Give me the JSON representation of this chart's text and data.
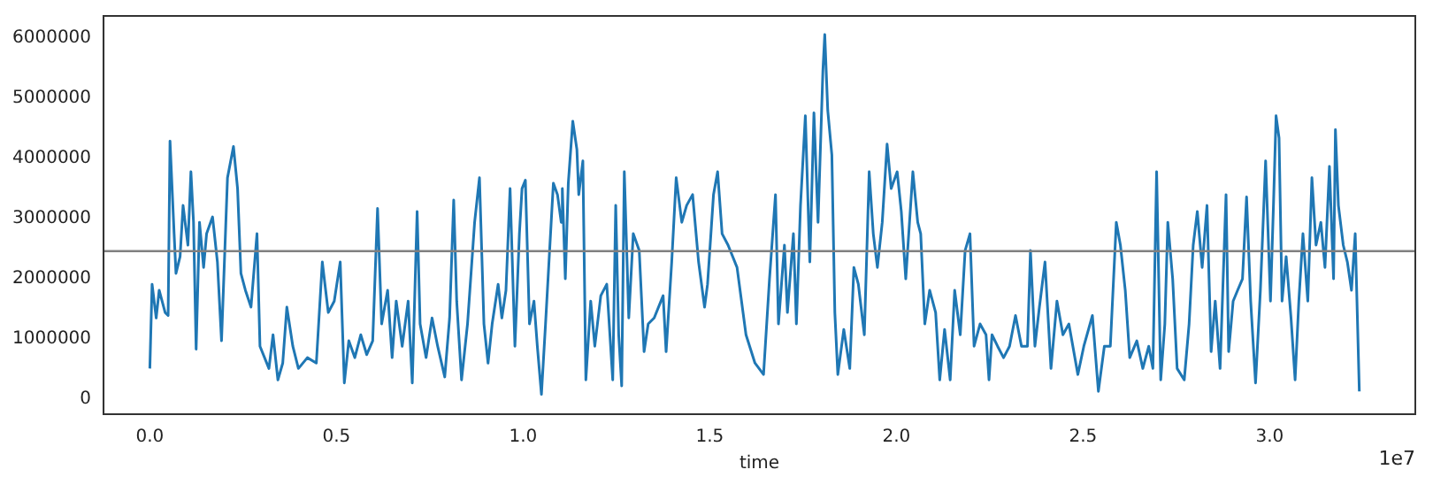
{
  "chart_data": {
    "type": "line",
    "xlabel": "time",
    "annotations": [
      "1e7"
    ],
    "grid": false,
    "legend": false,
    "marker": "none",
    "line_style": "solid",
    "xlim": [
      -0.124,
      3.39
    ],
    "ylim": [
      -260000,
      6360000
    ],
    "xticks": [
      {
        "value": 0,
        "label": "0.0"
      },
      0.5,
      {
        "value": 1,
        "label": "1.0"
      },
      1.5,
      {
        "value": 2,
        "label": "2.0"
      },
      2.5,
      {
        "value": 3,
        "label": "3.0"
      }
    ],
    "yticks": [
      0,
      1000000,
      2000000,
      3000000,
      4000000,
      5000000,
      6000000
    ],
    "ref_lines": [
      {
        "axis": "y",
        "value": 2450000,
        "color": "#808080"
      }
    ],
    "series": [
      {
        "color": "#1f77b4",
        "x": [
          0,
          0.006,
          0.017,
          0.025,
          0.041,
          0.049,
          0.054,
          0.065,
          0.07,
          0.081,
          0.089,
          0.102,
          0.11,
          0.117,
          0.124,
          0.133,
          0.144,
          0.152,
          0.168,
          0.181,
          0.192,
          0.208,
          0.224,
          0.235,
          0.244,
          0.256,
          0.271,
          0.287,
          0.295,
          0.319,
          0.33,
          0.343,
          0.356,
          0.367,
          0.383,
          0.398,
          0.422,
          0.446,
          0.462,
          0.478,
          0.494,
          0.51,
          0.521,
          0.533,
          0.549,
          0.565,
          0.581,
          0.597,
          0.61,
          0.621,
          0.637,
          0.649,
          0.66,
          0.676,
          0.692,
          0.703,
          0.716,
          0.724,
          0.74,
          0.756,
          0.771,
          0.79,
          0.803,
          0.814,
          0.822,
          0.835,
          0.851,
          0.87,
          0.883,
          0.895,
          0.906,
          0.917,
          0.933,
          0.943,
          0.954,
          0.965,
          0.978,
          0.99,
          0.997,
          1.006,
          1.017,
          1.029,
          1.038,
          1.049,
          1.06,
          1.07,
          1.081,
          1.092,
          1.102,
          1.105,
          1.113,
          1.121,
          1.133,
          1.144,
          1.149,
          1.16,
          1.168,
          1.181,
          1.192,
          1.208,
          1.224,
          1.24,
          1.248,
          1.256,
          1.264,
          1.271,
          1.283,
          1.295,
          1.311,
          1.324,
          1.335,
          1.351,
          1.375,
          1.383,
          1.398,
          1.41,
          1.425,
          1.438,
          1.454,
          1.47,
          1.486,
          1.494,
          1.51,
          1.521,
          1.533,
          1.549,
          1.573,
          1.597,
          1.621,
          1.644,
          1.66,
          1.676,
          1.684,
          1.7,
          1.708,
          1.724,
          1.732,
          1.743,
          1.756,
          1.768,
          1.779,
          1.79,
          1.803,
          1.808,
          1.816,
          1.827,
          1.835,
          1.843,
          1.859,
          1.875,
          1.886,
          1.898,
          1.914,
          1.927,
          1.938,
          1.949,
          1.962,
          1.975,
          1.986,
          2.002,
          2.013,
          2.025,
          2.044,
          2.057,
          2.065,
          2.076,
          2.089,
          2.105,
          2.116,
          2.129,
          2.144,
          2.156,
          2.171,
          2.184,
          2.197,
          2.208,
          2.224,
          2.24,
          2.248,
          2.256,
          2.271,
          2.287,
          2.303,
          2.319,
          2.335,
          2.351,
          2.359,
          2.371,
          2.383,
          2.398,
          2.414,
          2.43,
          2.446,
          2.462,
          2.486,
          2.502,
          2.525,
          2.541,
          2.557,
          2.573,
          2.589,
          2.6,
          2.613,
          2.625,
          2.644,
          2.66,
          2.676,
          2.687,
          2.697,
          2.708,
          2.719,
          2.727,
          2.74,
          2.752,
          2.771,
          2.784,
          2.795,
          2.806,
          2.819,
          2.832,
          2.843,
          2.854,
          2.867,
          2.883,
          2.89,
          2.902,
          2.914,
          2.927,
          2.938,
          2.949,
          2.962,
          2.975,
          2.989,
          3.002,
          3.01,
          3.017,
          3.025,
          3.033,
          3.044,
          3.057,
          3.068,
          3.078,
          3.089,
          3.102,
          3.113,
          3.124,
          3.137,
          3.148,
          3.16,
          3.171,
          3.176,
          3.184,
          3.197,
          3.208,
          3.219,
          3.229,
          3.24
        ],
        "values": [
          500000,
          1900000,
          1340000,
          1800000,
          1430000,
          1380000,
          4280000,
          2740000,
          2080000,
          2360000,
          3210000,
          2550000,
          3770000,
          2930000,
          820000,
          2930000,
          2180000,
          2740000,
          3020000,
          2270000,
          960000,
          3670000,
          4190000,
          3490000,
          2080000,
          1800000,
          1520000,
          2740000,
          870000,
          500000,
          1060000,
          310000,
          590000,
          1520000,
          870000,
          500000,
          680000,
          590000,
          2270000,
          1430000,
          1620000,
          2270000,
          260000,
          960000,
          680000,
          1060000,
          730000,
          960000,
          3160000,
          1240000,
          1800000,
          680000,
          1620000,
          870000,
          1620000,
          260000,
          3110000,
          1240000,
          680000,
          1340000,
          870000,
          360000,
          1340000,
          3300000,
          1620000,
          310000,
          1240000,
          2930000,
          3670000,
          1240000,
          590000,
          1240000,
          1900000,
          1340000,
          1800000,
          3490000,
          870000,
          2740000,
          3490000,
          3630000,
          1240000,
          1620000,
          870000,
          70000,
          1240000,
          2360000,
          3580000,
          3390000,
          2930000,
          3490000,
          1990000,
          3580000,
          4610000,
          4140000,
          3390000,
          3950000,
          310000,
          1620000,
          870000,
          1710000,
          1900000,
          310000,
          3210000,
          1060000,
          210000,
          3770000,
          1340000,
          2740000,
          2460000,
          780000,
          1240000,
          1340000,
          1710000,
          780000,
          2270000,
          3670000,
          2930000,
          3210000,
          3390000,
          2270000,
          1520000,
          1900000,
          3390000,
          3770000,
          2740000,
          2550000,
          2180000,
          1060000,
          590000,
          400000,
          1990000,
          3390000,
          1240000,
          2550000,
          1430000,
          2740000,
          1240000,
          3210000,
          4700000,
          2270000,
          4750000,
          2930000,
          5450000,
          6050000,
          4790000,
          4050000,
          1430000,
          400000,
          1150000,
          500000,
          2180000,
          1900000,
          1060000,
          3770000,
          2740000,
          2180000,
          2930000,
          4230000,
          3490000,
          3770000,
          3110000,
          1990000,
          3770000,
          2930000,
          2740000,
          1240000,
          1800000,
          1430000,
          310000,
          1150000,
          310000,
          1800000,
          1060000,
          2460000,
          2740000,
          870000,
          1240000,
          1060000,
          310000,
          1060000,
          870000,
          680000,
          870000,
          1380000,
          870000,
          870000,
          2460000,
          870000,
          1520000,
          2270000,
          500000,
          1620000,
          1060000,
          1240000,
          400000,
          870000,
          1380000,
          120000,
          870000,
          870000,
          2930000,
          2550000,
          1800000,
          680000,
          960000,
          500000,
          870000,
          500000,
          3770000,
          310000,
          1240000,
          2930000,
          1990000,
          500000,
          310000,
          1240000,
          2550000,
          3110000,
          2180000,
          3210000,
          780000,
          1620000,
          500000,
          3390000,
          780000,
          1620000,
          1800000,
          1990000,
          3350000,
          1620000,
          260000,
          1800000,
          3950000,
          1620000,
          3210000,
          4700000,
          4330000,
          1620000,
          2360000,
          1340000,
          310000,
          1620000,
          2740000,
          1620000,
          3670000,
          2550000,
          2930000,
          2180000,
          3860000,
          1990000,
          4470000,
          3210000,
          2550000,
          2270000,
          1800000,
          2740000,
          120000
        ]
      }
    ]
  }
}
